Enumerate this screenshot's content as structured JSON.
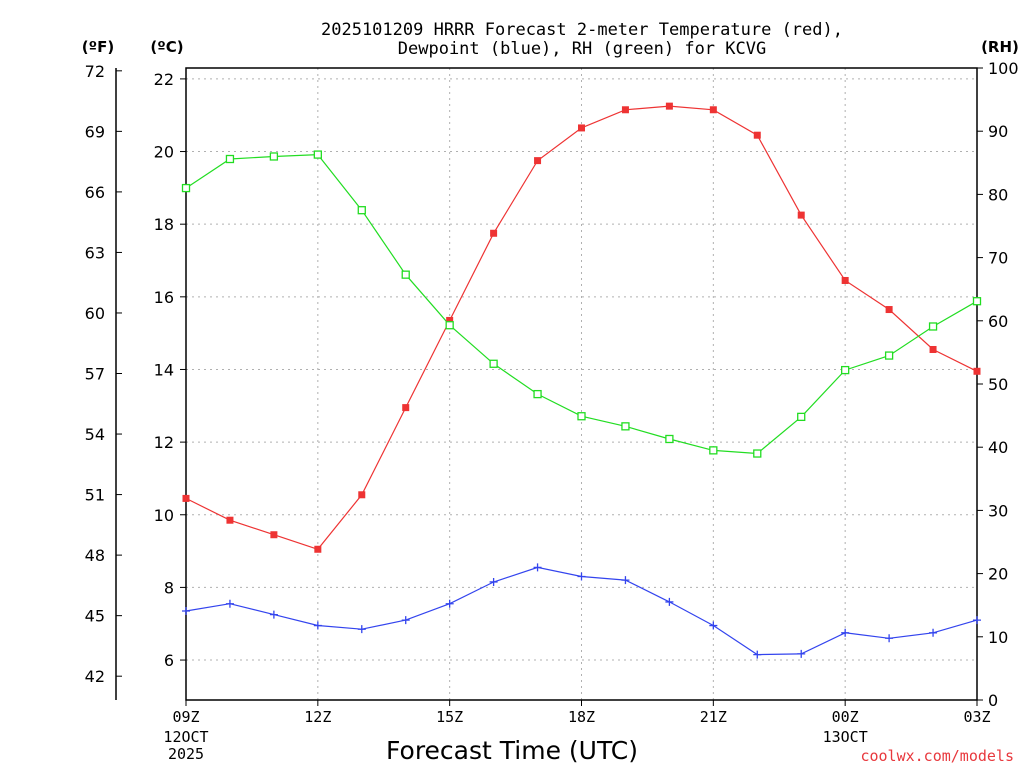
{
  "chart_data": {
    "type": "line",
    "title_line1": "2025101209 HRRR Forecast 2-meter Temperature (red),",
    "title_line2": "Dewpoint (blue), RH (green) for KCVG",
    "xlabel": "Forecast Time (UTC)",
    "credit": "coolwx.com/models",
    "units": {
      "fahrenheit": "(ºF)",
      "celsius": "(ºC)",
      "rh": "(RH)"
    },
    "x": [
      9,
      10,
      11,
      12,
      13,
      14,
      15,
      16,
      17,
      18,
      19,
      20,
      21,
      22,
      23,
      24,
      25,
      26,
      27
    ],
    "xlim": [
      9,
      27
    ],
    "x_ticks": [
      {
        "x": 9,
        "label": "09Z",
        "sub": [
          "12OCT",
          "2025"
        ]
      },
      {
        "x": 12,
        "label": "12Z"
      },
      {
        "x": 15,
        "label": "15Z"
      },
      {
        "x": 18,
        "label": "18Z"
      },
      {
        "x": 21,
        "label": "21Z"
      },
      {
        "x": 24,
        "label": "00Z",
        "sub": [
          "13OCT"
        ]
      },
      {
        "x": 27,
        "label": "03Z"
      }
    ],
    "ylim_c": [
      4.9,
      22.3
    ],
    "y_ticks_c": [
      "6",
      "8",
      "10",
      "12",
      "14",
      "16",
      "18",
      "20",
      "22"
    ],
    "y_ticks_f": [
      "42",
      "45",
      "48",
      "51",
      "54",
      "57",
      "60",
      "63",
      "66",
      "69",
      "72"
    ],
    "y_ticks_rh": [
      "0",
      "10",
      "20",
      "30",
      "40",
      "50",
      "60",
      "70",
      "80",
      "90",
      "100"
    ],
    "colors": {
      "temperature": "#ee3333",
      "dewpoint": "#3344ee",
      "rh": "#22dd22",
      "grid": "#b0b0b0",
      "credit": "#e8383d"
    },
    "series": [
      {
        "name": "Temperature",
        "units": "C",
        "values": [
          10.45,
          9.85,
          9.45,
          9.05,
          10.55,
          12.95,
          15.35,
          17.75,
          19.75,
          20.65,
          21.15,
          21.25,
          21.15,
          20.45,
          18.25,
          16.45,
          15.65,
          14.55,
          13.95
        ]
      },
      {
        "name": "Dewpoint",
        "units": "C",
        "values": [
          7.35,
          7.55,
          7.25,
          6.95,
          6.85,
          7.1,
          7.55,
          8.15,
          8.55,
          8.3,
          8.2,
          7.6,
          6.95,
          6.15,
          6.17,
          6.75,
          6.6,
          6.75,
          7.1
        ]
      },
      {
        "name": "RH",
        "units": "%",
        "values": [
          81,
          85.6,
          86,
          86.3,
          77.5,
          67.3,
          59.3,
          53.2,
          48.4,
          44.9,
          43.3,
          41.3,
          39.5,
          39,
          44.8,
          52.2,
          54.5,
          59.1,
          63.1
        ]
      }
    ]
  }
}
